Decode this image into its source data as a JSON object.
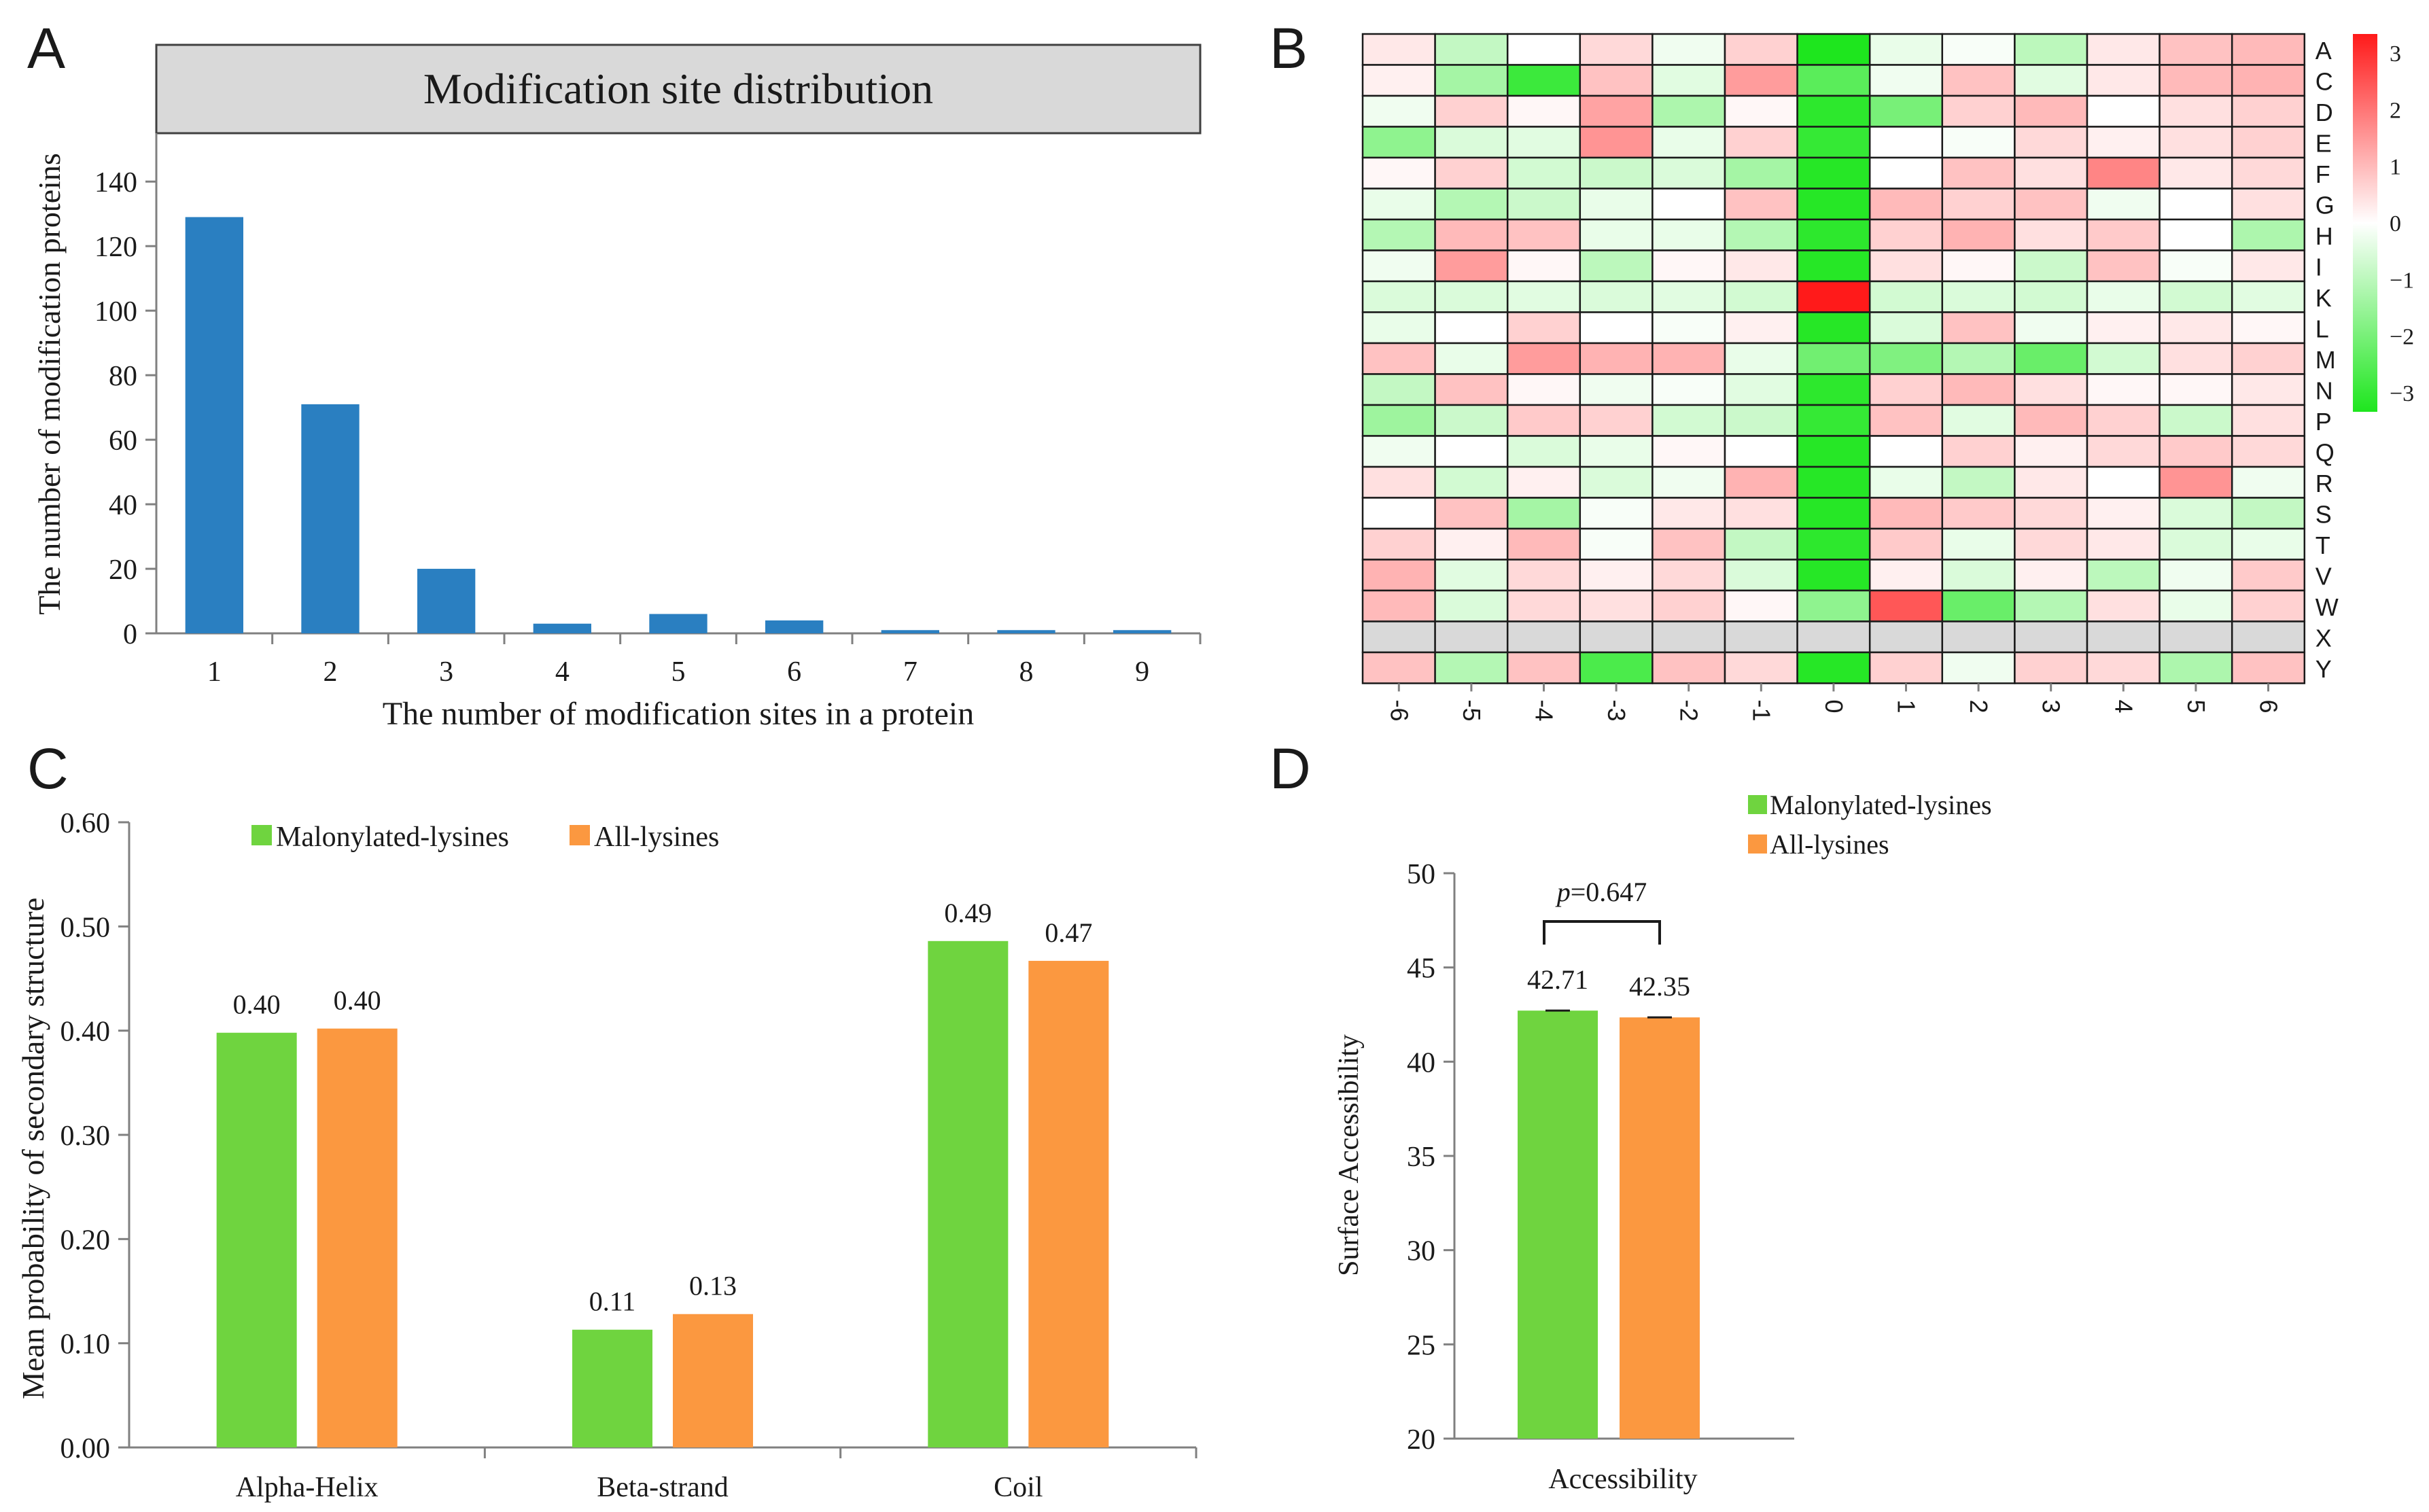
{
  "panels": {
    "A": "A",
    "B": "B",
    "C": "C",
    "D": "D"
  },
  "colors": {
    "bar_blue": "#2a7fc1",
    "green": "#6fd43f",
    "orange": "#fb9840",
    "header_grey": "#d9d9d9",
    "heat_pos": "#ff1a1a",
    "heat_neg": "#1ee61e",
    "heat_na": "#d9d9d9"
  },
  "chart_data": [
    {
      "id": "A",
      "type": "bar",
      "title": "Modification  site distribution",
      "xlabel": "The number of modification sites in a protein",
      "ylabel": "The number of modification proteins",
      "categories": [
        "1",
        "2",
        "3",
        "4",
        "5",
        "6",
        "7",
        "8",
        "9"
      ],
      "values": [
        129,
        71,
        20,
        3,
        6,
        4,
        1,
        1,
        1
      ],
      "ylim": [
        0,
        140
      ],
      "yticks": [
        "0",
        "20",
        "40",
        "60",
        "80",
        "100",
        "120",
        "140"
      ],
      "grid": false
    },
    {
      "id": "B",
      "type": "heatmap",
      "rows": [
        "A",
        "C",
        "D",
        "E",
        "F",
        "G",
        "H",
        "I",
        "K",
        "L",
        "M",
        "N",
        "P",
        "Q",
        "R",
        "S",
        "T",
        "V",
        "W",
        "X",
        "Y"
      ],
      "columns": [
        "-6",
        "-5",
        "-4",
        "-3",
        "-2",
        "-1",
        "0",
        "1",
        "2",
        "3",
        "4",
        "5",
        "6"
      ],
      "colorbar_ticks": [
        "3",
        "2",
        "1",
        "0",
        "−1",
        "−2",
        "−3"
      ],
      "range": [
        -3,
        3
      ],
      "values": [
        [
          0.3,
          -0.8,
          0.0,
          0.5,
          -0.2,
          0.6,
          -3.0,
          -0.3,
          -0.1,
          -0.9,
          0.3,
          0.8,
          0.9
        ],
        [
          0.2,
          -1.2,
          -2.6,
          0.8,
          -0.4,
          1.3,
          -2.2,
          -0.2,
          0.8,
          -0.4,
          0.3,
          0.9,
          1.0
        ],
        [
          -0.2,
          0.6,
          0.1,
          1.2,
          -1.1,
          0.1,
          -2.8,
          -1.8,
          0.6,
          0.9,
          0.0,
          0.4,
          0.6
        ],
        [
          -1.5,
          -0.5,
          -0.4,
          1.4,
          -0.3,
          0.6,
          -2.7,
          0.0,
          -0.1,
          0.5,
          0.2,
          0.4,
          0.6
        ],
        [
          0.1,
          0.6,
          -0.6,
          -0.7,
          -0.5,
          -1.2,
          -2.9,
          0.0,
          0.8,
          0.4,
          1.6,
          0.3,
          0.5
        ],
        [
          -0.3,
          -1.0,
          -0.7,
          -0.3,
          0.0,
          0.8,
          -2.9,
          0.9,
          0.6,
          0.8,
          -0.2,
          0.0,
          0.4
        ],
        [
          -1.0,
          0.9,
          0.8,
          -0.3,
          -0.3,
          -1.0,
          -2.8,
          0.6,
          1.0,
          0.4,
          0.7,
          0.0,
          -1.1
        ],
        [
          -0.2,
          1.3,
          0.1,
          -0.9,
          0.1,
          0.3,
          -2.9,
          0.4,
          0.1,
          -0.7,
          0.8,
          -0.1,
          0.3
        ],
        [
          -0.5,
          -0.5,
          -0.4,
          -0.5,
          -0.4,
          -0.6,
          3.0,
          -0.6,
          -0.5,
          -0.6,
          -0.3,
          -0.6,
          -0.4
        ],
        [
          -0.3,
          0.0,
          0.6,
          0.0,
          -0.1,
          0.2,
          -2.9,
          -0.5,
          0.8,
          -0.2,
          0.2,
          0.3,
          0.1
        ],
        [
          0.8,
          -0.3,
          1.3,
          1.0,
          1.0,
          -0.3,
          -1.9,
          -1.7,
          -1.0,
          -2.0,
          -0.6,
          0.4,
          0.6
        ],
        [
          -0.8,
          0.8,
          0.1,
          -0.2,
          -0.1,
          -0.4,
          -2.8,
          0.6,
          0.9,
          0.4,
          0.1,
          0.1,
          0.3
        ],
        [
          -1.3,
          -0.7,
          0.7,
          0.6,
          -0.6,
          -0.7,
          -2.7,
          0.8,
          -0.4,
          0.9,
          0.6,
          -0.7,
          0.4
        ],
        [
          -0.2,
          0.0,
          -0.5,
          -0.3,
          0.1,
          0.0,
          -2.9,
          0.0,
          0.6,
          0.2,
          0.5,
          0.7,
          0.5
        ],
        [
          0.4,
          -0.6,
          0.2,
          -0.5,
          -0.2,
          1.0,
          -2.9,
          -0.3,
          -0.8,
          0.3,
          0.0,
          1.4,
          -0.2
        ],
        [
          0.0,
          0.8,
          -1.2,
          -0.1,
          0.3,
          0.4,
          -2.9,
          0.9,
          0.7,
          0.5,
          0.2,
          -0.5,
          -0.8
        ],
        [
          0.6,
          0.2,
          0.9,
          -0.1,
          0.8,
          -0.8,
          -2.8,
          0.7,
          -0.3,
          0.5,
          0.3,
          -0.5,
          -0.3
        ],
        [
          1.0,
          -0.4,
          0.5,
          0.2,
          0.5,
          -0.5,
          -2.9,
          0.2,
          -0.5,
          0.2,
          -0.9,
          -0.2,
          0.7
        ],
        [
          0.9,
          -0.5,
          0.5,
          0.4,
          0.6,
          0.1,
          -1.5,
          2.2,
          -2.0,
          -1.0,
          0.4,
          -0.3,
          0.6
        ],
        [
          null,
          null,
          null,
          null,
          null,
          null,
          null,
          null,
          null,
          null,
          null,
          null,
          null
        ],
        [
          0.8,
          -1.0,
          0.8,
          -2.4,
          0.8,
          0.5,
          -2.9,
          0.6,
          -0.2,
          0.6,
          0.5,
          -1.1,
          0.8
        ]
      ]
    },
    {
      "id": "C",
      "type": "bar",
      "ylabel": "Mean probability of secondary structure",
      "categories": [
        "Alpha-Helix",
        "Beta-strand",
        "Coil"
      ],
      "series": [
        {
          "name": "Malonylated-lysines",
          "values": [
            0.398,
            0.113,
            0.486
          ],
          "labels": [
            "0.40",
            "0.11",
            "0.49"
          ]
        },
        {
          "name": "All-lysines",
          "values": [
            0.402,
            0.128,
            0.467
          ],
          "labels": [
            "0.40",
            "0.13",
            "0.47"
          ]
        }
      ],
      "ylim": [
        0,
        0.6
      ],
      "yticks": [
        "0.00",
        "0.10",
        "0.20",
        "0.30",
        "0.40",
        "0.50",
        "0.60"
      ],
      "legend": "top-left",
      "grid": false
    },
    {
      "id": "D",
      "type": "bar",
      "ylabel": "Surface Accessibility",
      "categories": [
        "Accessibility"
      ],
      "series": [
        {
          "name": "Malonylated-lysines",
          "values": [
            42.71
          ],
          "labels": [
            "42.71"
          ]
        },
        {
          "name": "All-lysines",
          "values": [
            42.35
          ],
          "labels": [
            "42.35"
          ]
        }
      ],
      "ylim": [
        20,
        50
      ],
      "yticks": [
        "20",
        "25",
        "30",
        "35",
        "40",
        "45",
        "50"
      ],
      "annotation": {
        "p_label": "p",
        "p_value": "=0.647"
      },
      "legend": "top",
      "grid": false
    }
  ]
}
